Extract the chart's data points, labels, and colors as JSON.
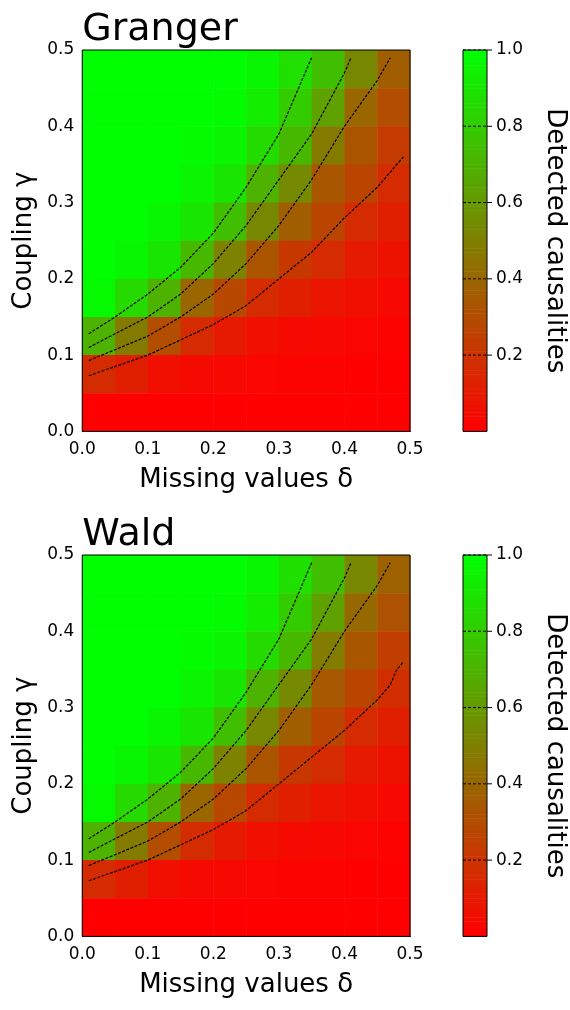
{
  "chart_data": [
    {
      "type": "heatmap",
      "title": "Granger",
      "xlabel": "Missing values δ",
      "ylabel": "Coupling γ",
      "clabel": "Detected causalities",
      "cells": [
        [
          1,
          1,
          1,
          1,
          1,
          0.97,
          0.88,
          0.75,
          0.53,
          0.37
        ],
        [
          1,
          1,
          1,
          1,
          0.99,
          0.93,
          0.8,
          0.63,
          0.4,
          0.3
        ],
        [
          1,
          1,
          1,
          0.99,
          0.96,
          0.86,
          0.72,
          0.48,
          0.33,
          0.23
        ],
        [
          1,
          1,
          1,
          0.96,
          0.9,
          0.7,
          0.54,
          0.34,
          0.27,
          0.17
        ],
        [
          1,
          1,
          0.97,
          0.9,
          0.75,
          0.53,
          0.37,
          0.27,
          0.17,
          0.12
        ],
        [
          1,
          0.97,
          0.9,
          0.72,
          0.51,
          0.33,
          0.22,
          0.17,
          0.1,
          0.07
        ],
        [
          0.98,
          0.85,
          0.7,
          0.4,
          0.28,
          0.17,
          0.12,
          0.08,
          0.06,
          0.03
        ],
        [
          0.7,
          0.48,
          0.3,
          0.17,
          0.1,
          0.06,
          0.04,
          0.03,
          0.02,
          0.01
        ],
        [
          0.17,
          0.12,
          0.06,
          0.04,
          0.03,
          0.02,
          0.01,
          0.01,
          0,
          0
        ],
        [
          0,
          0,
          0,
          0,
          0,
          0,
          0,
          0,
          0,
          0
        ]
      ],
      "clim": [
        0,
        1
      ],
      "cticks": [
        0.2,
        0.4,
        0.6,
        0.8,
        {
          "value": 1,
          "label": "1.0"
        }
      ],
      "xlim": [
        0,
        0.5
      ],
      "ylim": [
        0,
        0.5
      ],
      "xticks": [
        {
          "value": 0,
          "label": "0.0"
        },
        0.1,
        0.2,
        0.3,
        0.4,
        0.5
      ],
      "yticks": [
        {
          "value": 0,
          "label": "0.0"
        },
        0.1,
        0.2,
        0.3,
        0.4,
        0.5
      ],
      "series": [
        {
          "type": "line",
          "color": "#000000",
          "line_style": "dashed",
          "x": [
            0.01,
            0.05,
            0.1,
            0.15,
            0.2,
            0.25,
            0.3,
            0.35,
            0.4,
            0.45,
            0.49
          ],
          "values": [
            0.073,
            0.085,
            0.1,
            0.12,
            0.14,
            0.165,
            0.2,
            0.235,
            0.28,
            0.32,
            0.36
          ]
        },
        {
          "type": "line",
          "color": "#000000",
          "line_style": "dashed",
          "x": [
            0.01,
            0.05,
            0.1,
            0.15,
            0.2,
            0.25,
            0.3,
            0.35,
            0.4,
            0.45,
            0.47
          ],
          "values": [
            0.093,
            0.107,
            0.125,
            0.15,
            0.18,
            0.22,
            0.27,
            0.33,
            0.4,
            0.46,
            0.49
          ]
        },
        {
          "type": "line",
          "color": "#000000",
          "line_style": "dashed",
          "x": [
            0.01,
            0.05,
            0.1,
            0.15,
            0.2,
            0.25,
            0.3,
            0.35,
            0.4,
            0.41
          ],
          "values": [
            0.11,
            0.128,
            0.15,
            0.18,
            0.22,
            0.27,
            0.33,
            0.39,
            0.47,
            0.49
          ]
        },
        {
          "type": "line",
          "color": "#000000",
          "line_style": "dashed",
          "x": [
            0.01,
            0.05,
            0.1,
            0.15,
            0.2,
            0.25,
            0.3,
            0.35
          ],
          "values": [
            0.128,
            0.15,
            0.18,
            0.215,
            0.26,
            0.32,
            0.39,
            0.49
          ]
        }
      ]
    },
    {
      "type": "heatmap",
      "title": "Wald",
      "xlabel": "Missing values δ",
      "ylabel": "Coupling γ",
      "clabel": "Detected causalities",
      "cells": [
        [
          1,
          1,
          1,
          1,
          1,
          0.97,
          0.88,
          0.75,
          0.53,
          0.38
        ],
        [
          1,
          1,
          1,
          1,
          0.99,
          0.93,
          0.8,
          0.63,
          0.41,
          0.32
        ],
        [
          1,
          1,
          1,
          0.99,
          0.96,
          0.86,
          0.72,
          0.49,
          0.34,
          0.24
        ],
        [
          1,
          1,
          1,
          0.96,
          0.9,
          0.7,
          0.54,
          0.35,
          0.27,
          0.18
        ],
        [
          1,
          1,
          0.97,
          0.9,
          0.75,
          0.53,
          0.37,
          0.27,
          0.17,
          0.12
        ],
        [
          1,
          0.97,
          0.9,
          0.72,
          0.51,
          0.33,
          0.22,
          0.17,
          0.1,
          0.07
        ],
        [
          0.98,
          0.85,
          0.7,
          0.4,
          0.28,
          0.17,
          0.12,
          0.08,
          0.06,
          0.03
        ],
        [
          0.7,
          0.48,
          0.3,
          0.17,
          0.1,
          0.06,
          0.04,
          0.03,
          0.02,
          0.01
        ],
        [
          0.17,
          0.12,
          0.06,
          0.04,
          0.03,
          0.02,
          0.01,
          0.01,
          0,
          0
        ],
        [
          0,
          0,
          0,
          0,
          0,
          0,
          0,
          0,
          0,
          0
        ]
      ],
      "clim": [
        0,
        1
      ],
      "cticks": [
        0.2,
        0.4,
        0.6,
        0.8,
        {
          "value": 1,
          "label": "1.0"
        }
      ],
      "xlim": [
        0,
        0.5
      ],
      "ylim": [
        0,
        0.5
      ],
      "xticks": [
        {
          "value": 0,
          "label": "0.0"
        },
        0.1,
        0.2,
        0.3,
        0.4,
        0.5
      ],
      "yticks": [
        {
          "value": 0,
          "label": "0.0"
        },
        0.1,
        0.2,
        0.3,
        0.4,
        0.5
      ],
      "series": [
        {
          "type": "line",
          "color": "#000000",
          "line_style": "dashed",
          "x": [
            0.01,
            0.05,
            0.1,
            0.15,
            0.2,
            0.25,
            0.3,
            0.35,
            0.4,
            0.45,
            0.47,
            0.48,
            0.49
          ],
          "values": [
            0.073,
            0.085,
            0.1,
            0.12,
            0.14,
            0.165,
            0.2,
            0.235,
            0.27,
            0.31,
            0.33,
            0.35,
            0.36
          ]
        },
        {
          "type": "line",
          "color": "#000000",
          "line_style": "dashed",
          "x": [
            0.01,
            0.05,
            0.1,
            0.15,
            0.2,
            0.25,
            0.3,
            0.35,
            0.4,
            0.45,
            0.47
          ],
          "values": [
            0.093,
            0.107,
            0.125,
            0.15,
            0.18,
            0.22,
            0.27,
            0.33,
            0.4,
            0.46,
            0.49
          ]
        },
        {
          "type": "line",
          "color": "#000000",
          "line_style": "dashed",
          "x": [
            0.01,
            0.05,
            0.1,
            0.15,
            0.2,
            0.25,
            0.3,
            0.35,
            0.4,
            0.41
          ],
          "values": [
            0.11,
            0.128,
            0.15,
            0.18,
            0.22,
            0.27,
            0.33,
            0.39,
            0.47,
            0.49
          ]
        },
        {
          "type": "line",
          "color": "#000000",
          "line_style": "dashed",
          "x": [
            0.01,
            0.05,
            0.1,
            0.15,
            0.2,
            0.25,
            0.3,
            0.35
          ],
          "values": [
            0.128,
            0.15,
            0.18,
            0.215,
            0.26,
            0.32,
            0.39,
            0.49
          ]
        }
      ]
    }
  ]
}
